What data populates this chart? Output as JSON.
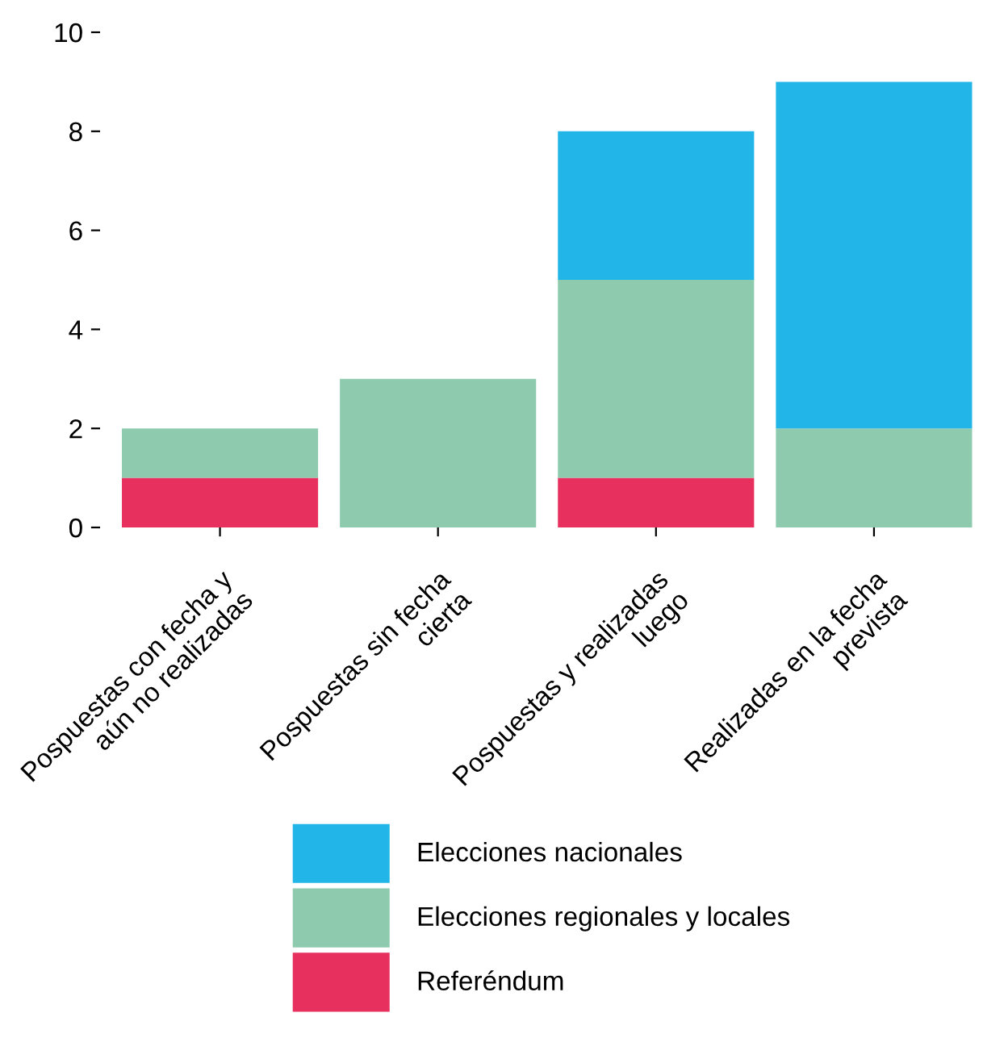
{
  "chart_data": {
    "type": "bar",
    "stacked": true,
    "categories": [
      "Pospuestas con fecha y\naún no realizadas",
      "Pospuestas sin fecha\ncierta",
      "Pospuestas y realizadas\nluego",
      "Realizadas en la fecha\nprevista"
    ],
    "series": [
      {
        "name": "Referéndum",
        "color": "#e8305f",
        "values": [
          1,
          0,
          1,
          0
        ]
      },
      {
        "name": "Elecciones regionales y locales",
        "color": "#8ecbae",
        "values": [
          1,
          3,
          4,
          2
        ]
      },
      {
        "name": "Elecciones nacionales",
        "color": "#22b5e8",
        "values": [
          0,
          0,
          3,
          7
        ]
      }
    ],
    "ylim": [
      0,
      10
    ],
    "yticks": [
      0,
      2,
      4,
      6,
      8,
      10
    ],
    "grid": false,
    "legend": "bottom"
  }
}
